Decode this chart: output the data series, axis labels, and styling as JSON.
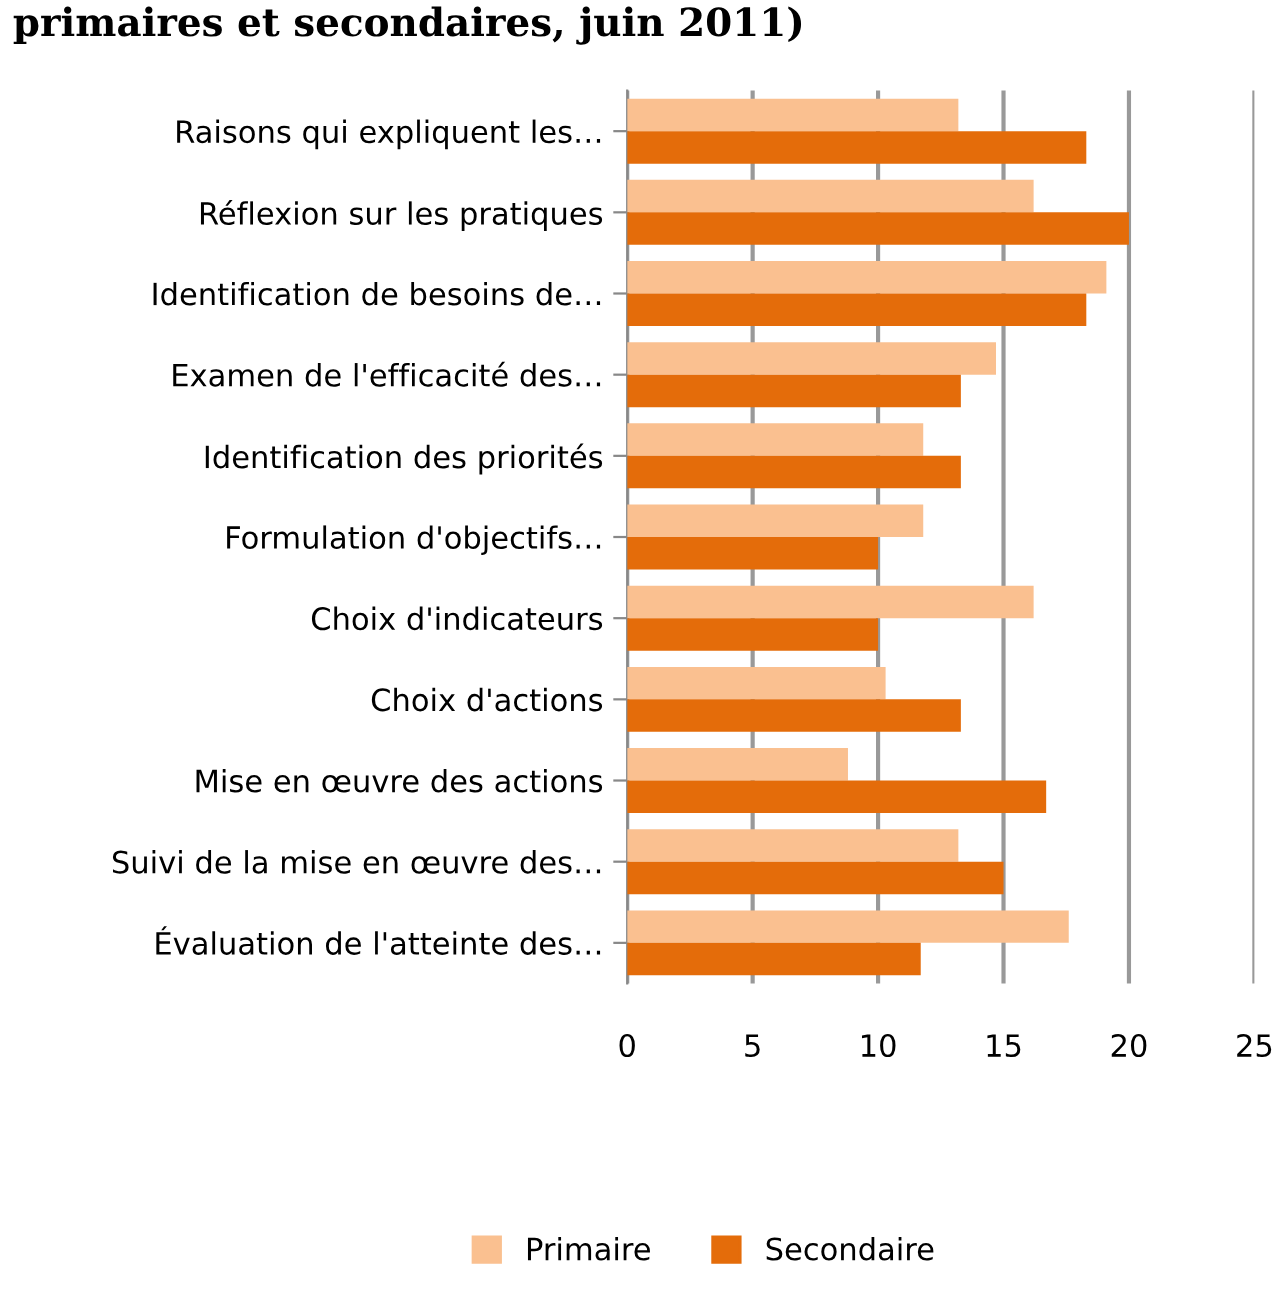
{
  "chart_data": {
    "type": "bar",
    "orientation": "horizontal",
    "title": "primaires et secondaires, juin 2011)",
    "categories": [
      "Raisons qui expliquent les…",
      "Réflexion sur les pratiques",
      "Identification de besoins de…",
      "Examen de l'efficacité des…",
      "Identification des priorités",
      "Formulation d'objectifs…",
      "Choix d'indicateurs",
      "Choix d'actions",
      "Mise en œuvre des actions",
      "Suivi de la mise en œuvre des…",
      "Évaluation de l'atteinte des…"
    ],
    "series": [
      {
        "name": "Primaire",
        "color": "#fac090",
        "values": [
          13.2,
          16.2,
          19.1,
          14.7,
          11.8,
          11.8,
          16.2,
          10.3,
          8.8,
          13.2,
          17.6
        ]
      },
      {
        "name": "Secondaire",
        "color": "#e46c0a",
        "values": [
          18.3,
          20,
          18.3,
          13.3,
          13.3,
          10,
          10,
          13.3,
          16.7,
          15,
          11.7
        ]
      }
    ],
    "xlim": [
      0,
      25
    ],
    "xticks": [
      0,
      5,
      10,
      15,
      20,
      25
    ],
    "grid": "x",
    "legend": "bottom"
  }
}
